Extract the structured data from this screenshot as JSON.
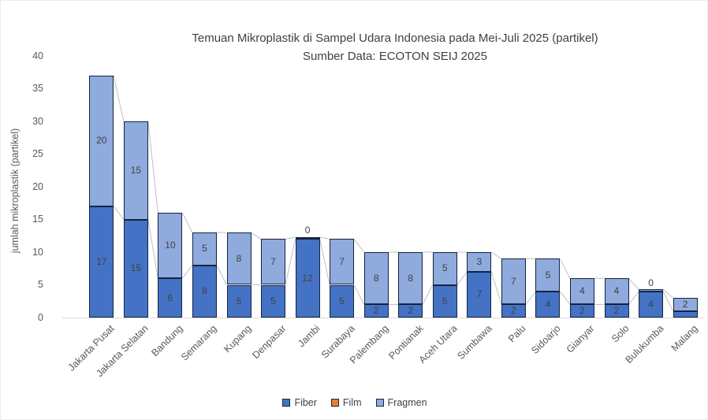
{
  "chart_data": {
    "type": "bar",
    "stacked": true,
    "title": "Temuan Mikroplastik di Sampel Udara Indonesia pada Mei-Juli 2025 (partikel)",
    "subtitle": "Sumber Data: ECOTON SEIJ 2025",
    "ylabel": "jumlah mikroplastik (partikel)",
    "xlabel": "",
    "ylim": [
      0,
      40
    ],
    "yticks": [
      0,
      5,
      10,
      15,
      20,
      25,
      30,
      35,
      40
    ],
    "grid": false,
    "legend_position": "bottom",
    "series_lines": true,
    "categories": [
      "Jakarta Pusat",
      "Jakarta Selatan",
      "Bandung",
      "Semarang",
      "Kupang",
      "Denpasar",
      "Jambi",
      "Surabaya",
      "Palembang",
      "Pontianak",
      "Aceh Utara",
      "Sumbawa",
      "Palu",
      "Sidoarjo",
      "Gianyar",
      "Solo",
      "Bulukumba",
      "Malang"
    ],
    "series": [
      {
        "name": "Fiber",
        "color": "#4472C4",
        "values": [
          17,
          15,
          6,
          8,
          5,
          5,
          12,
          5,
          2,
          2,
          5,
          7,
          2,
          4,
          2,
          2,
          4,
          1
        ]
      },
      {
        "name": "Film",
        "color": "#ED7D31",
        "values": [
          0,
          0,
          0,
          0,
          0,
          0,
          0,
          0,
          0,
          0,
          0,
          0,
          0,
          0,
          0,
          0,
          0,
          0
        ]
      },
      {
        "name": "Fragmen",
        "color": "#8FAADC",
        "values": [
          20,
          15,
          10,
          5,
          8,
          7,
          0,
          7,
          8,
          8,
          5,
          3,
          7,
          5,
          4,
          4,
          0,
          2
        ]
      }
    ],
    "colors": {
      "bar_border": "#16233f",
      "series_line": "#c0c0c0",
      "axis_line": "#d9d9d9",
      "title_text": "#404040",
      "axis_text": "#595959",
      "data_label_text": "#404040"
    }
  }
}
